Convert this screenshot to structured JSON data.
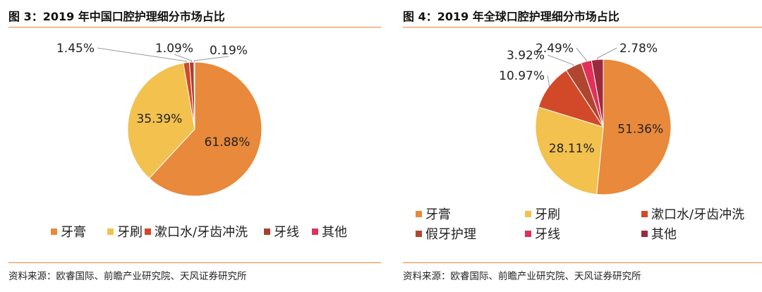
{
  "source_label": "资料来源：欧睿国际、前瞻产业研究院、天风证券研究所",
  "colors": {
    "toothpaste": "#e8893b",
    "toothbrush": "#f2c14e",
    "mouthwash": "#d2492a",
    "floss_cn": "#a8402e",
    "other": "#e0315a",
    "denture": "#b04630",
    "floss_global": "#e0315a",
    "other_global": "#9c2a3e",
    "rule": "#e8863a"
  },
  "chart_data": [
    {
      "type": "pie",
      "title": "图 3：2019 年中国口腔护理细分市场占比",
      "categories": [
        "牙膏",
        "牙刷",
        "漱口水/牙齿冲洗",
        "牙线",
        "其他"
      ],
      "values": [
        61.88,
        35.39,
        1.45,
        1.09,
        0.19
      ],
      "labels": [
        "61.88%",
        "35.39%",
        "1.45%",
        "1.09%",
        "0.19%"
      ],
      "colors": [
        "#e8893b",
        "#f2c14e",
        "#d2492a",
        "#a8402e",
        "#e0315a"
      ],
      "legend": "bottom"
    },
    {
      "type": "pie",
      "title": "图 4：2019 年全球口腔护理细分市场占比",
      "categories": [
        "牙膏",
        "牙刷",
        "漱口水/牙齿冲洗",
        "假牙护理",
        "牙线",
        "其他"
      ],
      "values": [
        51.36,
        28.11,
        10.97,
        3.92,
        2.49,
        2.78
      ],
      "labels": [
        "51.36%",
        "28.11%",
        "10.97%",
        "3.92%",
        "2.49%",
        "2.78%"
      ],
      "colors": [
        "#e8893b",
        "#f2c14e",
        "#d2492a",
        "#b04630",
        "#e0315a",
        "#9c2a3e"
      ],
      "legend": "bottom"
    }
  ]
}
